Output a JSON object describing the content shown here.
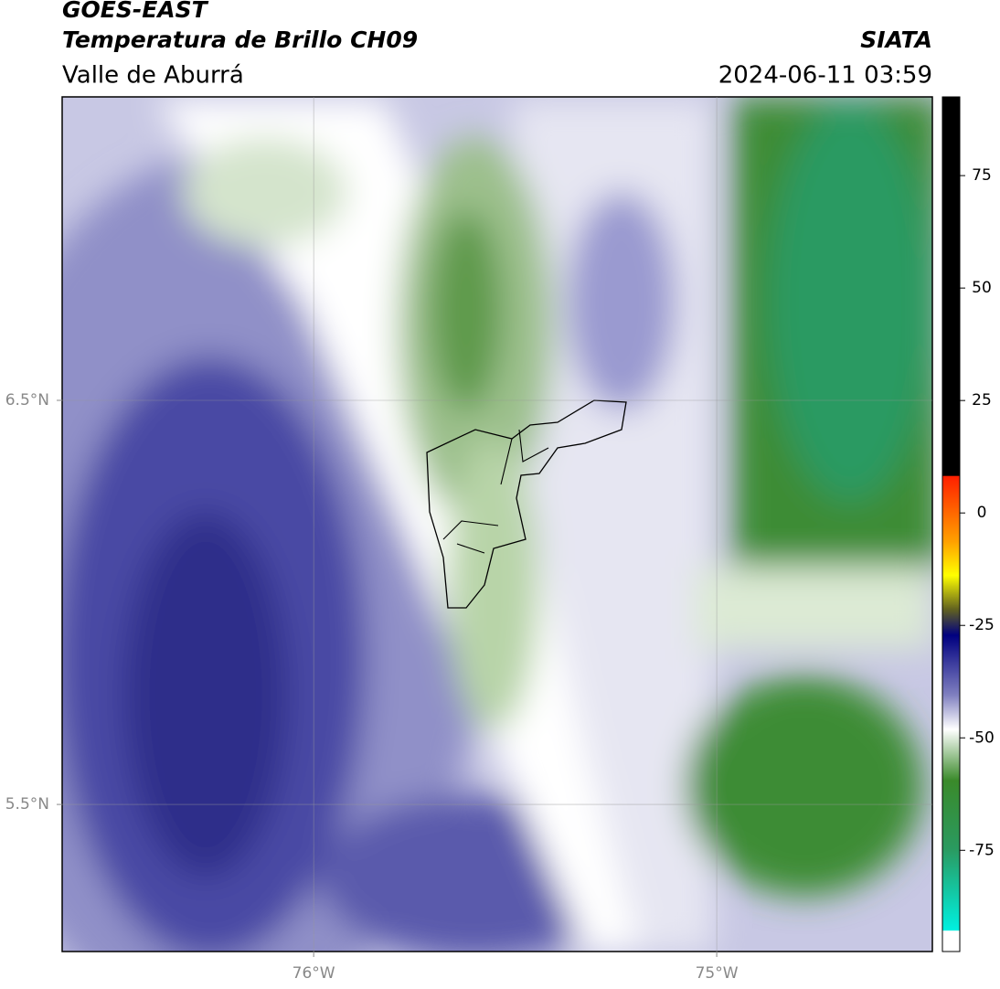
{
  "header": {
    "title": "GOES-EAST",
    "subtitle": "Temperatura de Brillo CH09",
    "region": "Valle de Aburrá",
    "source": "SIATA",
    "timestamp": "2024-06-11 03:59"
  },
  "map": {
    "xlim": [
      -76.624,
      -74.465
    ],
    "ylim": [
      5.136,
      7.251
    ],
    "xticks": [
      {
        "value": -76,
        "label": "76°W"
      },
      {
        "value": -75,
        "label": "75°W"
      }
    ],
    "yticks": [
      {
        "value": 6.5,
        "label": "6.5°N"
      },
      {
        "value": 5.5,
        "label": "5.5°N"
      }
    ]
  },
  "colorbar": {
    "lim": [
      -97.5,
      92.5
    ],
    "ticks": [
      75,
      50,
      25,
      0,
      -25,
      -50,
      -75
    ]
  }
}
